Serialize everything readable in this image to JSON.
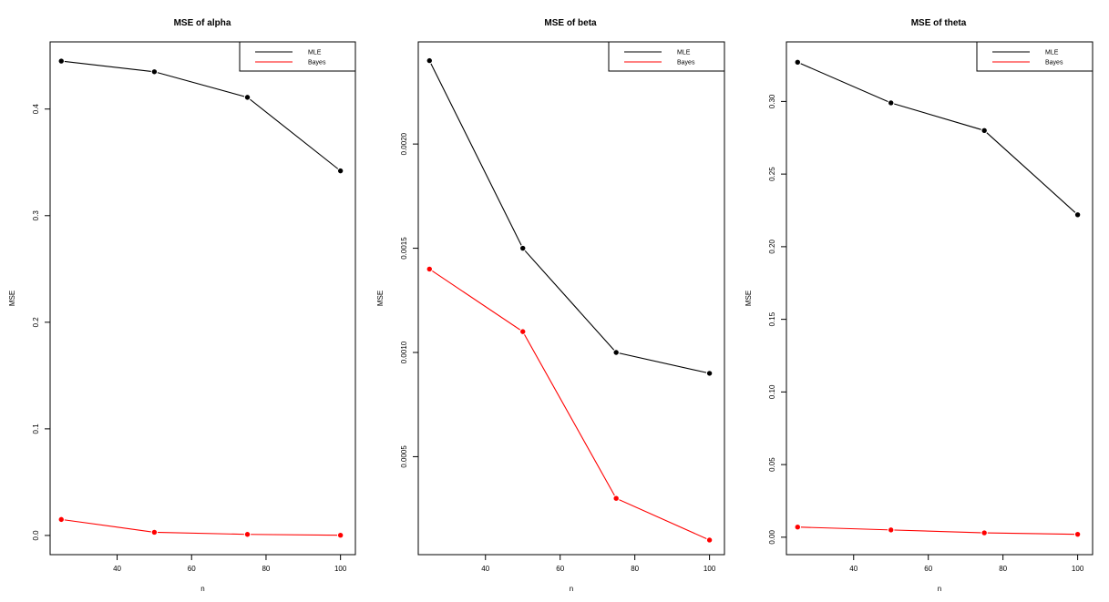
{
  "chart_data": [
    {
      "type": "line",
      "title": "MSE of alpha",
      "xlabel": "n",
      "ylabel": "MSE",
      "x": [
        25,
        50,
        75,
        100
      ],
      "xlim": [
        22,
        104
      ],
      "ylim": [
        -0.018,
        0.463
      ],
      "xticks": [
        {
          "v": 40,
          "label": "40"
        },
        {
          "v": 60,
          "label": "60"
        },
        {
          "v": 80,
          "label": "80"
        },
        {
          "v": 100,
          "label": "100"
        }
      ],
      "yticks": [
        {
          "v": 0.0,
          "label": "0.0"
        },
        {
          "v": 0.1,
          "label": "0.1"
        },
        {
          "v": 0.2,
          "label": "0.2"
        },
        {
          "v": 0.3,
          "label": "0.3"
        },
        {
          "v": 0.4,
          "label": "0.4"
        }
      ],
      "legend": {
        "position": "top-right"
      },
      "series": [
        {
          "name": "MLE",
          "color": "#000000",
          "values": [
            0.445,
            0.435,
            0.411,
            0.342
          ]
        },
        {
          "name": "Bayes",
          "color": "#ff0000",
          "values": [
            0.015,
            0.003,
            0.001,
            0.0002
          ]
        }
      ]
    },
    {
      "type": "line",
      "title": "MSE of beta",
      "xlabel": "n",
      "ylabel": "MSE",
      "x": [
        25,
        50,
        75,
        100
      ],
      "xlim": [
        22,
        104
      ],
      "ylim": [
        3e-05,
        0.00249
      ],
      "xticks": [
        {
          "v": 40,
          "label": "40"
        },
        {
          "v": 60,
          "label": "60"
        },
        {
          "v": 80,
          "label": "80"
        },
        {
          "v": 100,
          "label": "100"
        }
      ],
      "yticks": [
        {
          "v": 0.0005,
          "label": "0.0005"
        },
        {
          "v": 0.001,
          "label": "0.0010"
        },
        {
          "v": 0.0015,
          "label": "0.0015"
        },
        {
          "v": 0.002,
          "label": "0.0020"
        }
      ],
      "legend": {
        "position": "top-right"
      },
      "series": [
        {
          "name": "MLE",
          "color": "#000000",
          "values": [
            0.0024,
            0.0015,
            0.001,
            0.0009
          ]
        },
        {
          "name": "Bayes",
          "color": "#ff0000",
          "values": [
            0.0014,
            0.0011,
            0.0003,
            0.0001
          ]
        }
      ]
    },
    {
      "type": "line",
      "title": "MSE of theta",
      "xlabel": "n",
      "ylabel": "MSE",
      "x": [
        25,
        50,
        75,
        100
      ],
      "xlim": [
        22,
        104
      ],
      "ylim": [
        -0.012,
        0.341
      ],
      "xticks": [
        {
          "v": 40,
          "label": "40"
        },
        {
          "v": 60,
          "label": "60"
        },
        {
          "v": 80,
          "label": "80"
        },
        {
          "v": 100,
          "label": "100"
        }
      ],
      "yticks": [
        {
          "v": 0.0,
          "label": "0.00"
        },
        {
          "v": 0.05,
          "label": "0.05"
        },
        {
          "v": 0.1,
          "label": "0.10"
        },
        {
          "v": 0.15,
          "label": "0.15"
        },
        {
          "v": 0.2,
          "label": "0.20"
        },
        {
          "v": 0.25,
          "label": "0.25"
        },
        {
          "v": 0.3,
          "label": "0.30"
        }
      ],
      "legend": {
        "position": "top-right"
      },
      "series": [
        {
          "name": "MLE",
          "color": "#000000",
          "values": [
            0.327,
            0.299,
            0.28,
            0.222
          ]
        },
        {
          "name": "Bayes",
          "color": "#ff0000",
          "values": [
            0.007,
            0.005,
            0.003,
            0.002
          ]
        }
      ]
    }
  ]
}
